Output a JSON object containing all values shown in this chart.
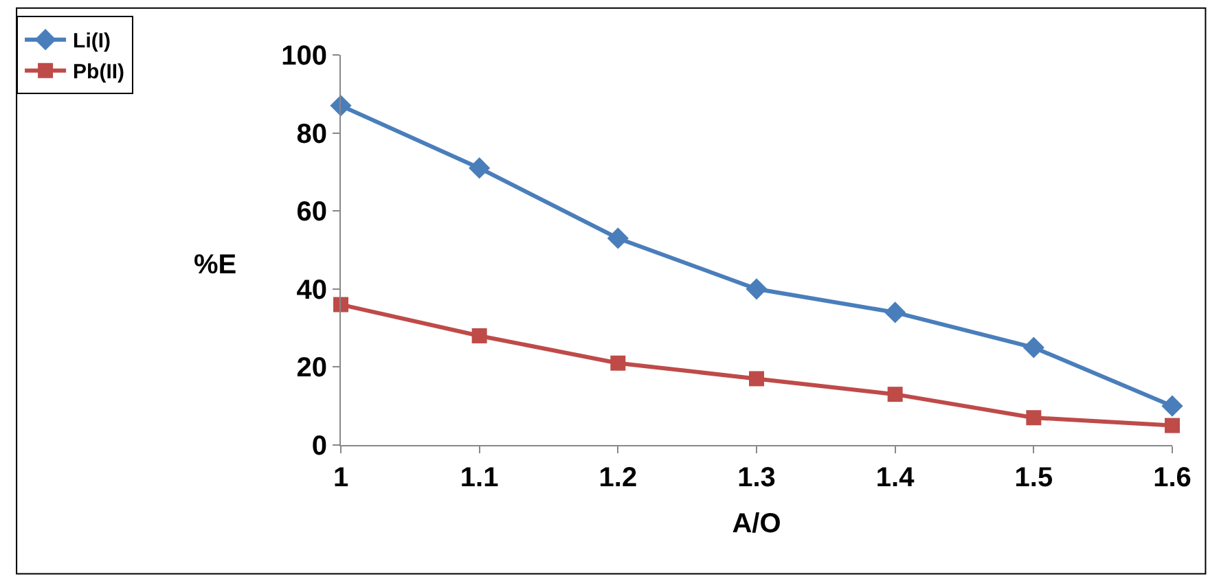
{
  "chart_data": {
    "type": "line",
    "xlabel": "A/O",
    "ylabel": "%E",
    "x": [
      1,
      1.1,
      1.2,
      1.3,
      1.4,
      1.5,
      1.6
    ],
    "series": [
      {
        "name": "Li(I)",
        "color": "#4a7ebb",
        "marker": "diamond",
        "values": [
          87,
          71,
          53,
          40,
          34,
          25,
          10
        ]
      },
      {
        "name": "Pb(II)",
        "color": "#be4b48",
        "marker": "square",
        "values": [
          36,
          28,
          21,
          17,
          13,
          7,
          5
        ]
      }
    ],
    "xlim": [
      1,
      1.6
    ],
    "xticks": [
      1,
      1.1,
      1.2,
      1.3,
      1.4,
      1.5,
      1.6
    ],
    "ylim": [
      0,
      100
    ],
    "yticks": [
      0,
      20,
      40,
      60,
      80,
      100
    ],
    "legend": "top left",
    "line_style": "solid"
  }
}
